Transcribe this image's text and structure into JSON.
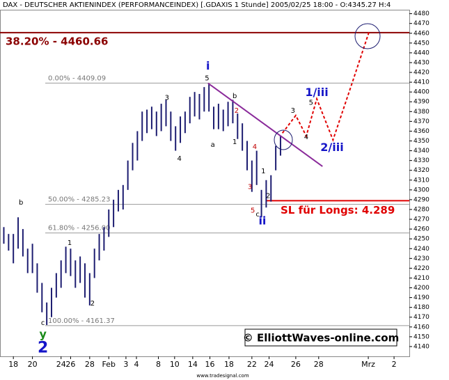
{
  "chart_data": {
    "type": "ohlc",
    "title": "DAX - DEUTSCHER AKTIENINDEX (PERFORMANCEINDEX) [.GDAXIS  1 Stunde] 2005/02/25 18:00 - O:4345.27 H:4",
    "color": "#1c1c70",
    "x": [
      -1,
      -0.5,
      0,
      0.5,
      1,
      1.5,
      2,
      2.5,
      3,
      3.5,
      4,
      4.5,
      5,
      5.5,
      6,
      6.5,
      7,
      7.5,
      8,
      8.5,
      9,
      9.5,
      10,
      10.5,
      11,
      11.5,
      12,
      12.5,
      13,
      13.5,
      14,
      14.5,
      15,
      15.5,
      16,
      16.5,
      17,
      17.5,
      18,
      18.5,
      19,
      19.5,
      20,
      20.5,
      21,
      21.5,
      22,
      22.5,
      23,
      23.5,
      24,
      24.5,
      25,
      25.5,
      26,
      26.5,
      27,
      27.5,
      28
    ],
    "high": [
      4262,
      4255,
      4255,
      4272,
      4260,
      4240,
      4245,
      4225,
      4205,
      4185,
      4200,
      4215,
      4228,
      4242,
      4240,
      4228,
      4232,
      4225,
      4215,
      4240,
      4255,
      4262,
      4280,
      4290,
      4300,
      4305,
      4330,
      4348,
      4360,
      4380,
      4382,
      4385,
      4380,
      4388,
      4392,
      4380,
      4365,
      4375,
      4380,
      4395,
      4400,
      4398,
      4405,
      4408,
      4385,
      4388,
      4382,
      4390,
      4392,
      4378,
      4368,
      4350,
      4330,
      4340,
      4300,
      4310,
      4315,
      4345,
      4355
    ],
    "low": [
      4245,
      4238,
      4225,
      4240,
      4232,
      4215,
      4215,
      4195,
      4175,
      4162,
      4170,
      4190,
      4200,
      4215,
      4212,
      4200,
      4205,
      4190,
      4182,
      4210,
      4228,
      4238,
      4252,
      4262,
      4278,
      4280,
      4300,
      4320,
      4330,
      4350,
      4358,
      4362,
      4355,
      4360,
      4365,
      4350,
      4340,
      4348,
      4358,
      4368,
      4375,
      4372,
      4380,
      4380,
      4362,
      4362,
      4360,
      4365,
      4368,
      4352,
      4340,
      4320,
      4298,
      4305,
      4272,
      4282,
      4288,
      4320,
      4335
    ],
    "projection": {
      "color": "#e00000",
      "x": [
        28.2,
        29.6,
        30.7,
        31.8,
        33.5,
        35.5,
        37.3
      ],
      "values": [
        4358,
        4376,
        4355,
        4393,
        4351,
        4409,
        4462
      ]
    },
    "trendline": {
      "color": "#8a2a9a",
      "x": [
        20.4,
        32.4
      ],
      "values": [
        4409,
        4324
      ]
    },
    "levels": [
      {
        "label": "38.20% - 4460.66",
        "value": 4460.66,
        "color": "#8b0000"
      },
      {
        "label": "0.00% - 4409.09",
        "value": 4409.09,
        "color": "#999999"
      },
      {
        "label": "50.00% - 4285.23",
        "value": 4285.23,
        "color": "#999999"
      },
      {
        "label": "61.80% - 4256.00",
        "value": 4256.0,
        "color": "#999999"
      },
      {
        "label": "100.00% - 4161.37",
        "value": 4161.37,
        "color": "#999999"
      },
      {
        "label": "SL für Longs: 4.289",
        "value": 4289,
        "color": "#e00000"
      }
    ],
    "annotations": [
      {
        "text": "b",
        "x": 0.8,
        "y": 4287,
        "color": "#000000"
      },
      {
        "text": "c",
        "x": 3.1,
        "y": 4164,
        "color": "#000000"
      },
      {
        "text": "y",
        "x": 3.1,
        "y": 4152,
        "color": "#1a8a1a"
      },
      {
        "text": "2",
        "x": 3.1,
        "y": 4138,
        "color": "#1515c8"
      },
      {
        "text": "1",
        "x": 5.9,
        "y": 4246,
        "color": "#000000"
      },
      {
        "text": "2",
        "x": 8.3,
        "y": 4184,
        "color": "#000000"
      },
      {
        "text": "3",
        "x": 16.1,
        "y": 4394,
        "color": "#000000"
      },
      {
        "text": "4",
        "x": 17.4,
        "y": 4332,
        "color": "#000000"
      },
      {
        "text": "i",
        "x": 20.4,
        "y": 4426,
        "color": "#1515c8"
      },
      {
        "text": "5",
        "x": 20.3,
        "y": 4414,
        "color": "#000000"
      },
      {
        "text": "a",
        "x": 20.9,
        "y": 4346,
        "color": "#000000"
      },
      {
        "text": "b",
        "x": 23.2,
        "y": 4396,
        "color": "#000000"
      },
      {
        "text": "2",
        "x": 23.4,
        "y": 4381,
        "color": "#c00000"
      },
      {
        "text": "1",
        "x": 23.2,
        "y": 4349,
        "color": "#000000"
      },
      {
        "text": "4",
        "x": 25.3,
        "y": 4344,
        "color": "#c00000"
      },
      {
        "text": "3",
        "x": 24.8,
        "y": 4303,
        "color": "#c00000"
      },
      {
        "text": "1",
        "x": 26.2,
        "y": 4319,
        "color": "#000000"
      },
      {
        "text": "2",
        "x": 26.7,
        "y": 4294,
        "color": "#000000"
      },
      {
        "text": "5",
        "x": 25.1,
        "y": 4279,
        "color": "#c00000"
      },
      {
        "text": "c",
        "x": 25.6,
        "y": 4275,
        "color": "#000000"
      },
      {
        "text": "ii",
        "x": 26.1,
        "y": 4268,
        "color": "#1515c8"
      },
      {
        "text": "3",
        "x": 29.3,
        "y": 4381,
        "color": "#000000"
      },
      {
        "text": "4",
        "x": 30.7,
        "y": 4354,
        "color": "#000000"
      },
      {
        "text": "5",
        "x": 31.2,
        "y": 4389,
        "color": "#000000"
      },
      {
        "text": "1/iii",
        "x": 31.8,
        "y": 4399,
        "color": "#1515c8"
      },
      {
        "text": "2/iii",
        "x": 33.4,
        "y": 4343,
        "color": "#1515c8"
      }
    ],
    "watermark": "© ElliottWaves-online.com",
    "footer": "www.tradesignal.com",
    "xlim": [
      -1.4,
      41.5
    ],
    "xticks": [
      {
        "value": 0,
        "label": "18"
      },
      {
        "value": 2,
        "label": "20"
      },
      {
        "value": 5,
        "label": "24"
      },
      {
        "value": 6,
        "label": "26"
      },
      {
        "value": 8,
        "label": "28"
      },
      {
        "value": 10,
        "label": "Feb"
      },
      {
        "value": 11.8,
        "label": "3"
      },
      {
        "value": 12.9,
        "label": "4"
      },
      {
        "value": 15.2,
        "label": "8"
      },
      {
        "value": 16.9,
        "label": "10"
      },
      {
        "value": 18.8,
        "label": "14"
      },
      {
        "value": 20.6,
        "label": "16"
      },
      {
        "value": 22.6,
        "label": "18"
      },
      {
        "value": 25,
        "label": "22"
      },
      {
        "value": 26.8,
        "label": "24"
      },
      {
        "value": 29.6,
        "label": "26"
      },
      {
        "value": 32,
        "label": "28"
      },
      {
        "value": 37.2,
        "label": "Mrz"
      },
      {
        "value": 39.9,
        "label": "2"
      }
    ],
    "ylim": [
      4130,
      4484
    ],
    "yticks": [
      4140,
      4150,
      4160,
      4170,
      4180,
      4190,
      4200,
      4210,
      4220,
      4230,
      4240,
      4250,
      4260,
      4270,
      4280,
      4290,
      4300,
      4310,
      4320,
      4330,
      4340,
      4350,
      4360,
      4370,
      4380,
      4390,
      4400,
      4410,
      4420,
      4430,
      4440,
      4450,
      4460,
      4470,
      4480
    ]
  }
}
